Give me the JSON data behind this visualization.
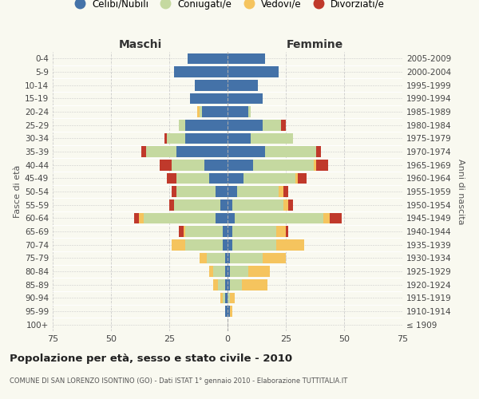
{
  "age_groups": [
    "100+",
    "95-99",
    "90-94",
    "85-89",
    "80-84",
    "75-79",
    "70-74",
    "65-69",
    "60-64",
    "55-59",
    "50-54",
    "45-49",
    "40-44",
    "35-39",
    "30-34",
    "25-29",
    "20-24",
    "15-19",
    "10-14",
    "5-9",
    "0-4"
  ],
  "birth_years": [
    "≤ 1909",
    "1910-1914",
    "1915-1919",
    "1920-1924",
    "1925-1929",
    "1930-1934",
    "1935-1939",
    "1940-1944",
    "1945-1949",
    "1950-1954",
    "1955-1959",
    "1960-1964",
    "1965-1969",
    "1970-1974",
    "1975-1979",
    "1980-1984",
    "1985-1989",
    "1990-1994",
    "1995-1999",
    "2000-2004",
    "2005-2009"
  ],
  "male": {
    "celibe": [
      0,
      1,
      1,
      1,
      1,
      1,
      2,
      2,
      5,
      3,
      5,
      8,
      10,
      22,
      18,
      18,
      11,
      16,
      14,
      23,
      17
    ],
    "coniugato": [
      0,
      0,
      1,
      3,
      5,
      8,
      16,
      16,
      31,
      20,
      17,
      14,
      14,
      13,
      8,
      3,
      1,
      0,
      0,
      0,
      0
    ],
    "vedovo": [
      0,
      0,
      1,
      2,
      2,
      3,
      6,
      1,
      2,
      0,
      0,
      0,
      0,
      0,
      0,
      0,
      1,
      0,
      0,
      0,
      0
    ],
    "divorziato": [
      0,
      0,
      0,
      0,
      0,
      0,
      0,
      2,
      2,
      2,
      2,
      4,
      5,
      2,
      1,
      0,
      0,
      0,
      0,
      0,
      0
    ]
  },
  "female": {
    "nubile": [
      0,
      1,
      0,
      1,
      1,
      1,
      2,
      2,
      3,
      2,
      4,
      7,
      11,
      16,
      10,
      15,
      9,
      15,
      13,
      22,
      16
    ],
    "coniugata": [
      0,
      0,
      1,
      5,
      8,
      14,
      19,
      19,
      38,
      22,
      18,
      22,
      26,
      22,
      18,
      8,
      1,
      0,
      0,
      0,
      0
    ],
    "vedova": [
      0,
      1,
      2,
      11,
      9,
      10,
      12,
      4,
      3,
      2,
      2,
      1,
      1,
      0,
      0,
      0,
      0,
      0,
      0,
      0,
      0
    ],
    "divorziata": [
      0,
      0,
      0,
      0,
      0,
      0,
      0,
      1,
      5,
      2,
      2,
      4,
      5,
      2,
      0,
      2,
      0,
      0,
      0,
      0,
      0
    ]
  },
  "colors": {
    "celibe": "#4472a8",
    "coniugato": "#c5d9a0",
    "vedovo": "#f5c45e",
    "divorziato": "#c0392b"
  },
  "xlim": 75,
  "title": "Popolazione per età, sesso e stato civile - 2010",
  "subtitle": "COMUNE DI SAN LORENZO ISONTINO (GO) - Dati ISTAT 1° gennaio 2010 - Elaborazione TUTTITALIA.IT",
  "ylabel_left": "Fasce di età",
  "ylabel_right": "Anni di nascita",
  "xlabel_left": "Maschi",
  "xlabel_right": "Femmine",
  "bg_color": "#f9f9f0",
  "grid_color": "#cccccc"
}
